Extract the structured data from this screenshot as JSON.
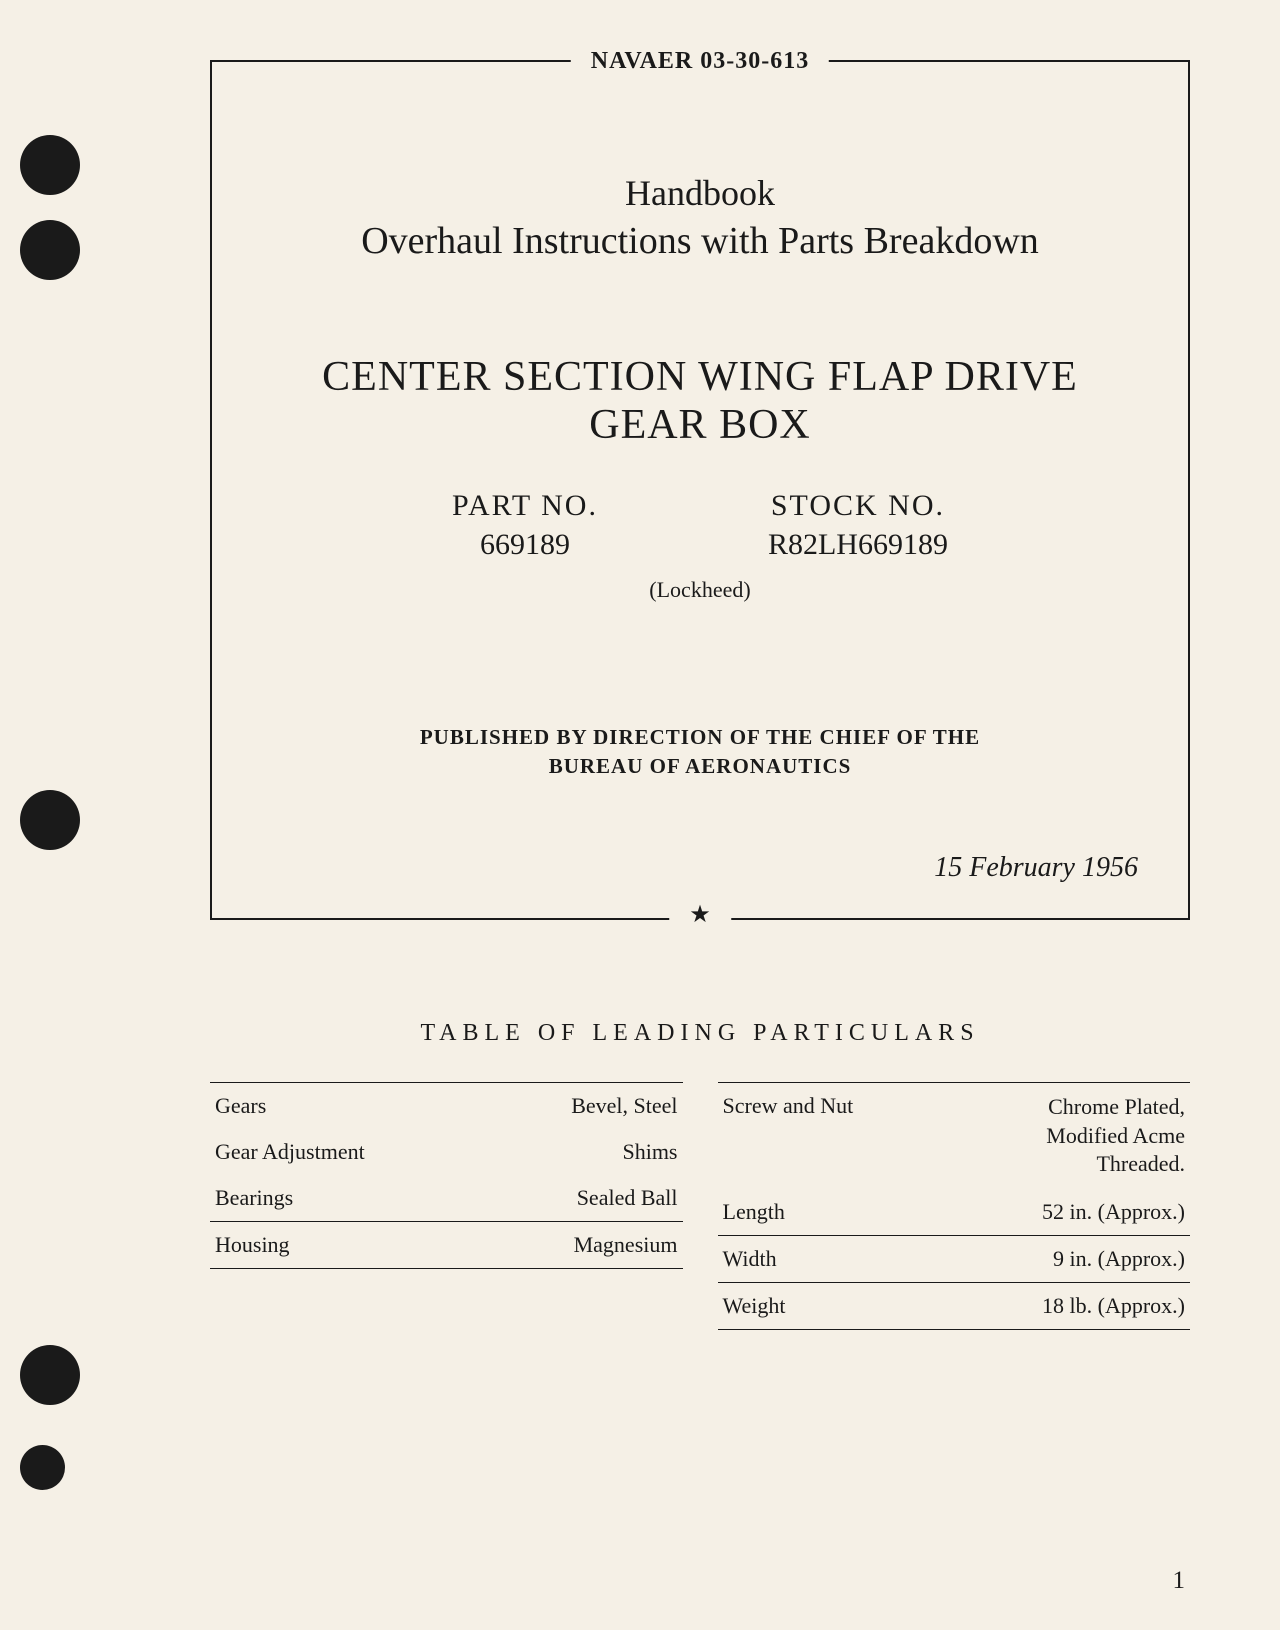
{
  "header": {
    "doc_number": "NAVAER 03-30-613"
  },
  "title_block": {
    "handbook": "Handbook",
    "subtitle": "Overhaul Instructions with Parts Breakdown",
    "main_title_line1": "CENTER SECTION WING FLAP DRIVE",
    "main_title_line2": "GEAR BOX",
    "part_label": "PART NO.",
    "part_value": "669189",
    "stock_label": "STOCK NO.",
    "stock_value": "R82LH669189",
    "manufacturer": "(Lockheed)",
    "published_line1": "PUBLISHED BY DIRECTION OF THE CHIEF OF THE",
    "published_line2": "BUREAU OF AERONAUTICS",
    "date": "15 February 1956"
  },
  "table": {
    "title": "TABLE OF LEADING PARTICULARS",
    "left_rows": [
      {
        "label": "Gears",
        "value": "Bevel, Steel"
      },
      {
        "label": "Gear Adjustment",
        "value": "Shims"
      },
      {
        "label": "Bearings",
        "value": "Sealed Ball"
      },
      {
        "label": "Housing",
        "value": "Magnesium"
      }
    ],
    "right_rows": [
      {
        "label": "Screw and Nut",
        "value": "Chrome Plated,\nModified Acme\nThreaded."
      },
      {
        "label": "Length",
        "value": "52 in. (Approx.)"
      },
      {
        "label": "Width",
        "value": "9 in. (Approx.)"
      },
      {
        "label": "Weight",
        "value": "18 lb. (Approx.)"
      }
    ]
  },
  "page_number": "1",
  "style": {
    "background_color": "#f5f0e6",
    "text_color": "#1a1a1a",
    "border_color": "#1a1a1a"
  }
}
